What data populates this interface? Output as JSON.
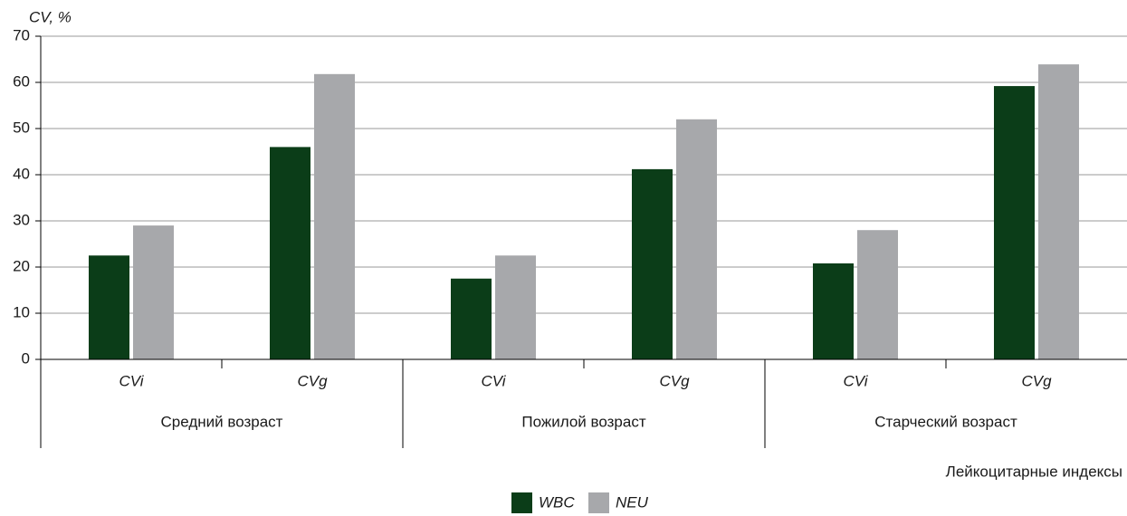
{
  "chart_data": {
    "type": "bar",
    "y_label": "CV, %",
    "x_label": "Лейкоцитарные индексы",
    "categories": [
      "CVi",
      "CVg",
      "CVi",
      "CVg",
      "CVi",
      "CVg"
    ],
    "groups": [
      "Средний возраст",
      "Пожилой возраст",
      "Старческий возраст"
    ],
    "series": [
      {
        "name": "WBC",
        "color": "#0b3d18",
        "values": [
          22.5,
          46,
          17.5,
          41.2,
          20.8,
          59.2
        ]
      },
      {
        "name": "NEU",
        "color": "#a7a8ab",
        "values": [
          29,
          61.8,
          22.5,
          52,
          28,
          63.9
        ]
      }
    ],
    "ylim": [
      0,
      70
    ],
    "yticks": [
      0,
      10,
      20,
      30,
      40,
      50,
      60,
      70
    ],
    "grid": true
  }
}
